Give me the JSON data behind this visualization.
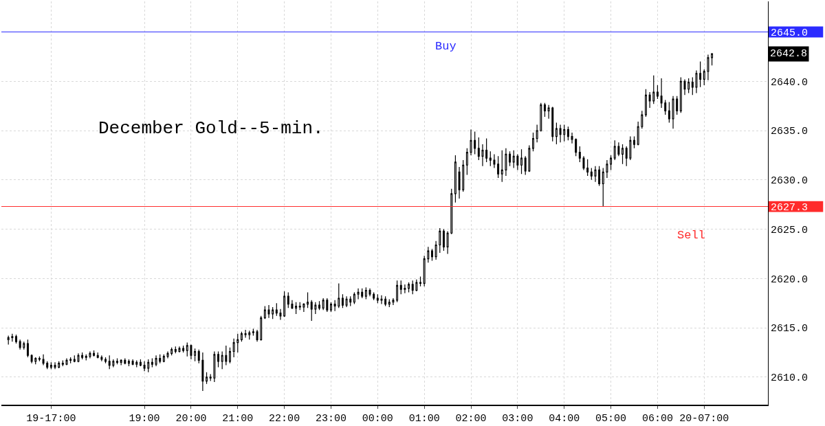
{
  "chart_data": {
    "type": "candlestick",
    "title": "December Gold--5-min.",
    "color": "#000000",
    "x": [
      "--11-19T16:05",
      "--11-19T16:10",
      "--11-19T16:15",
      "--11-19T16:20",
      "--11-19T16:25",
      "--11-19T16:30",
      "--11-19T16:35",
      "--11-19T16:40",
      "--11-19T16:45",
      "--11-19T16:50",
      "--11-19T16:55",
      "--11-19T17:00",
      "--11-19T17:05",
      "--11-19T17:10",
      "--11-19T17:15",
      "--11-19T17:20",
      "--11-19T17:25",
      "--11-19T17:30",
      "--11-19T17:35",
      "--11-19T17:40",
      "--11-19T17:45",
      "--11-19T17:50",
      "--11-19T17:55",
      "--11-19T18:00",
      "--11-19T18:05",
      "--11-19T18:10",
      "--11-19T18:15",
      "--11-19T18:20",
      "--11-19T18:25",
      "--11-19T18:30",
      "--11-19T18:35",
      "--11-19T18:40",
      "--11-19T18:45",
      "--11-19T18:50",
      "--11-19T18:55",
      "--11-19T19:00",
      "--11-19T19:05",
      "--11-19T19:10",
      "--11-19T19:15",
      "--11-19T19:20",
      "--11-19T19:25",
      "--11-19T19:30",
      "--11-19T19:35",
      "--11-19T19:40",
      "--11-19T19:45",
      "--11-19T19:50",
      "--11-19T19:55",
      "--11-19T20:00",
      "--11-19T20:05",
      "--11-19T20:10",
      "--11-19T20:15",
      "--11-19T20:20",
      "--11-19T20:25",
      "--11-19T20:30",
      "--11-19T20:35",
      "--11-19T20:40",
      "--11-19T20:45",
      "--11-19T20:50",
      "--11-19T20:55",
      "--11-19T21:00",
      "--11-19T21:05",
      "--11-19T21:10",
      "--11-19T21:15",
      "--11-19T21:20",
      "--11-19T21:25",
      "--11-19T21:30",
      "--11-19T21:35",
      "--11-19T21:40",
      "--11-19T21:45",
      "--11-19T21:50",
      "--11-19T21:55",
      "--11-19T22:00",
      "--11-19T22:05",
      "--11-19T22:10",
      "--11-19T22:15",
      "--11-19T22:20",
      "--11-19T22:25",
      "--11-19T22:30",
      "--11-19T22:35",
      "--11-19T22:40",
      "--11-19T22:45",
      "--11-19T22:50",
      "--11-19T22:55",
      "--11-19T23:00",
      "--11-19T23:05",
      "--11-19T23:10",
      "--11-19T23:15",
      "--11-19T23:20",
      "--11-19T23:25",
      "--11-19T23:30",
      "--11-19T23:35",
      "--11-19T23:40",
      "--11-19T23:45",
      "--11-19T23:50",
      "--11-19T23:55",
      "--11-20T00:00",
      "--11-20T00:05",
      "--11-20T00:10",
      "--11-20T00:15",
      "--11-20T00:20",
      "--11-20T00:25",
      "--11-20T00:30",
      "--11-20T00:35",
      "--11-20T00:40",
      "--11-20T00:45",
      "--11-20T00:50",
      "--11-20T00:55",
      "--11-20T01:00",
      "--11-20T01:05",
      "--11-20T01:10",
      "--11-20T01:15",
      "--11-20T01:20",
      "--11-20T01:25",
      "--11-20T01:30",
      "--11-20T01:35",
      "--11-20T01:40",
      "--11-20T01:45",
      "--11-20T01:50",
      "--11-20T01:55",
      "--11-20T02:00",
      "--11-20T02:05",
      "--11-20T02:10",
      "--11-20T02:15",
      "--11-20T02:20",
      "--11-20T02:25",
      "--11-20T02:30",
      "--11-20T02:35",
      "--11-20T02:40",
      "--11-20T02:45",
      "--11-20T02:50",
      "--11-20T02:55",
      "--11-20T03:00",
      "--11-20T03:05",
      "--11-20T03:10",
      "--11-20T03:15",
      "--11-20T03:20",
      "--11-20T03:25",
      "--11-20T03:30",
      "--11-20T03:35",
      "--11-20T03:40",
      "--11-20T03:45",
      "--11-20T03:50",
      "--11-20T03:55",
      "--11-20T04:00",
      "--11-20T04:05",
      "--11-20T04:10",
      "--11-20T04:15",
      "--11-20T04:20",
      "--11-20T04:25",
      "--11-20T04:30",
      "--11-20T04:35",
      "--11-20T04:40",
      "--11-20T04:45",
      "--11-20T04:50",
      "--11-20T04:55",
      "--11-20T05:00",
      "--11-20T05:05",
      "--11-20T05:10",
      "--11-20T05:15",
      "--11-20T05:20",
      "--11-20T05:25",
      "--11-20T05:30",
      "--11-20T05:35",
      "--11-20T05:40",
      "--11-20T05:45",
      "--11-20T05:50",
      "--11-20T05:55",
      "--11-20T06:00",
      "--11-20T06:05",
      "--11-20T06:10",
      "--11-20T06:15",
      "--11-20T06:20",
      "--11-20T06:25",
      "--11-20T06:30",
      "--11-20T06:35",
      "--11-20T06:40",
      "--11-20T06:45",
      "--11-20T06:50",
      "--11-20T06:55",
      "--11-20T07:00",
      "--11-20T07:05",
      "--11-20T07:10"
    ],
    "ohlc": [
      [
        2613.8,
        2614.2,
        2613.3,
        2614.0
      ],
      [
        2614.0,
        2614.4,
        2613.6,
        2614.1
      ],
      [
        2614.1,
        2614.3,
        2613.4,
        2613.6
      ],
      [
        2613.6,
        2613.8,
        2612.8,
        2613.0
      ],
      [
        2613.0,
        2613.6,
        2612.8,
        2613.4
      ],
      [
        2613.4,
        2613.8,
        2612.0,
        2612.2
      ],
      [
        2612.2,
        2612.3,
        2611.4,
        2611.6
      ],
      [
        2611.6,
        2612.0,
        2611.3,
        2611.9
      ],
      [
        2611.9,
        2612.1,
        2611.6,
        2611.8
      ],
      [
        2611.8,
        2612.3,
        2611.2,
        2611.4
      ],
      [
        2611.4,
        2611.6,
        2610.8,
        2611.0
      ],
      [
        2611.0,
        2611.5,
        2610.8,
        2611.2
      ],
      [
        2611.2,
        2611.5,
        2610.8,
        2611.0
      ],
      [
        2611.0,
        2611.6,
        2610.9,
        2611.4
      ],
      [
        2611.4,
        2611.7,
        2611.1,
        2611.3
      ],
      [
        2611.3,
        2611.9,
        2611.2,
        2611.7
      ],
      [
        2611.7,
        2612.0,
        2611.4,
        2611.8
      ],
      [
        2611.8,
        2612.2,
        2611.5,
        2611.6
      ],
      [
        2611.6,
        2612.4,
        2611.5,
        2612.2
      ],
      [
        2612.2,
        2612.5,
        2611.8,
        2612.0
      ],
      [
        2612.0,
        2612.3,
        2611.7,
        2612.1
      ],
      [
        2612.1,
        2612.6,
        2611.9,
        2612.4
      ],
      [
        2612.4,
        2612.7,
        2612.1,
        2612.2
      ],
      [
        2612.2,
        2612.5,
        2611.9,
        2612.0
      ],
      [
        2612.0,
        2612.2,
        2611.6,
        2611.8
      ],
      [
        2611.8,
        2612.0,
        2611.4,
        2611.6
      ],
      [
        2611.6,
        2612.2,
        2610.8,
        2611.2
      ],
      [
        2611.2,
        2611.8,
        2611.0,
        2611.6
      ],
      [
        2611.6,
        2611.9,
        2611.3,
        2611.5
      ],
      [
        2611.5,
        2611.8,
        2611.2,
        2611.7
      ],
      [
        2611.7,
        2611.9,
        2611.3,
        2611.4
      ],
      [
        2611.4,
        2611.8,
        2611.1,
        2611.6
      ],
      [
        2611.6,
        2611.8,
        2611.2,
        2611.3
      ],
      [
        2611.3,
        2611.7,
        2611.0,
        2611.5
      ],
      [
        2611.5,
        2611.8,
        2611.1,
        2611.2
      ],
      [
        2611.2,
        2611.6,
        2610.6,
        2610.9
      ],
      [
        2610.9,
        2611.8,
        2610.5,
        2611.5
      ],
      [
        2611.5,
        2611.9,
        2611.0,
        2611.3
      ],
      [
        2611.3,
        2612.2,
        2611.1,
        2611.9
      ],
      [
        2611.9,
        2612.3,
        2611.4,
        2611.6
      ],
      [
        2611.6,
        2612.3,
        2611.5,
        2612.1
      ],
      [
        2612.1,
        2612.6,
        2611.9,
        2612.4
      ],
      [
        2612.4,
        2613.0,
        2612.2,
        2612.8
      ],
      [
        2612.8,
        2613.1,
        2612.4,
        2612.6
      ],
      [
        2612.6,
        2613.1,
        2612.5,
        2612.9
      ],
      [
        2612.9,
        2613.2,
        2612.5,
        2612.7
      ],
      [
        2612.7,
        2613.5,
        2612.1,
        2613.2
      ],
      [
        2613.2,
        2613.3,
        2611.8,
        2612.2
      ],
      [
        2612.2,
        2612.9,
        2611.6,
        2612.6
      ],
      [
        2612.6,
        2612.8,
        2611.4,
        2611.7
      ],
      [
        2611.7,
        2612.5,
        2608.6,
        2609.6
      ],
      [
        2609.6,
        2610.5,
        2609.3,
        2610.0
      ],
      [
        2610.0,
        2610.3,
        2609.6,
        2609.9
      ],
      [
        2609.9,
        2612.6,
        2609.5,
        2612.3
      ],
      [
        2612.3,
        2612.6,
        2611.0,
        2611.6
      ],
      [
        2611.6,
        2612.6,
        2610.8,
        2612.2
      ],
      [
        2612.2,
        2613.2,
        2611.2,
        2611.6
      ],
      [
        2611.6,
        2613.0,
        2611.4,
        2612.6
      ],
      [
        2612.6,
        2613.9,
        2612.0,
        2613.5
      ],
      [
        2613.5,
        2614.4,
        2612.5,
        2613.8
      ],
      [
        2613.8,
        2614.6,
        2613.6,
        2614.4
      ],
      [
        2614.4,
        2614.8,
        2614.0,
        2614.3
      ],
      [
        2614.3,
        2614.7,
        2613.8,
        2614.5
      ],
      [
        2614.5,
        2614.9,
        2614.2,
        2614.6
      ],
      [
        2614.6,
        2614.8,
        2613.6,
        2613.8
      ],
      [
        2613.8,
        2616.2,
        2613.7,
        2616.0
      ],
      [
        2616.0,
        2617.2,
        2615.9,
        2616.8
      ],
      [
        2616.8,
        2617.3,
        2616.0,
        2616.4
      ],
      [
        2616.4,
        2617.1,
        2615.9,
        2616.8
      ],
      [
        2616.8,
        2617.5,
        2616.2,
        2616.5
      ],
      [
        2616.5,
        2616.9,
        2615.8,
        2616.2
      ],
      [
        2616.2,
        2618.7,
        2616.1,
        2618.2
      ],
      [
        2618.2,
        2618.6,
        2617.0,
        2617.4
      ],
      [
        2617.4,
        2617.8,
        2616.9,
        2617.0
      ],
      [
        2617.0,
        2617.6,
        2616.4,
        2617.2
      ],
      [
        2617.2,
        2617.6,
        2616.8,
        2617.1
      ],
      [
        2617.1,
        2617.5,
        2616.6,
        2617.4
      ],
      [
        2617.4,
        2618.6,
        2617.0,
        2617.6
      ],
      [
        2617.6,
        2617.8,
        2615.7,
        2616.9
      ],
      [
        2616.9,
        2617.6,
        2616.4,
        2617.3
      ],
      [
        2617.3,
        2617.7,
        2616.8,
        2617.0
      ],
      [
        2617.0,
        2618.0,
        2616.8,
        2617.8
      ],
      [
        2617.8,
        2618.0,
        2616.6,
        2616.8
      ],
      [
        2616.8,
        2617.6,
        2616.6,
        2617.4
      ],
      [
        2617.4,
        2617.8,
        2616.7,
        2617.2
      ],
      [
        2617.2,
        2619.5,
        2617.0,
        2618.0
      ],
      [
        2618.0,
        2618.4,
        2617.0,
        2617.3
      ],
      [
        2617.3,
        2618.2,
        2617.1,
        2617.9
      ],
      [
        2617.9,
        2618.2,
        2617.2,
        2617.6
      ],
      [
        2617.6,
        2618.6,
        2617.4,
        2618.4
      ],
      [
        2618.4,
        2619.0,
        2617.9,
        2618.6
      ],
      [
        2618.6,
        2619.0,
        2618.0,
        2618.2
      ],
      [
        2618.2,
        2619.1,
        2617.9,
        2618.8
      ],
      [
        2618.8,
        2619.0,
        2618.2,
        2618.4
      ],
      [
        2618.4,
        2618.6,
        2617.8,
        2618.0
      ],
      [
        2618.0,
        2618.4,
        2617.5,
        2617.8
      ],
      [
        2617.8,
        2618.3,
        2617.4,
        2617.9
      ],
      [
        2617.9,
        2618.2,
        2617.2,
        2617.4
      ],
      [
        2617.4,
        2617.9,
        2617.1,
        2617.6
      ],
      [
        2617.6,
        2618.0,
        2617.3,
        2617.8
      ],
      [
        2617.8,
        2619.8,
        2617.6,
        2619.3
      ],
      [
        2619.3,
        2619.8,
        2618.4,
        2618.9
      ],
      [
        2618.9,
        2619.4,
        2618.5,
        2619.0
      ],
      [
        2619.0,
        2619.6,
        2618.6,
        2619.4
      ],
      [
        2619.4,
        2619.8,
        2618.4,
        2618.8
      ],
      [
        2618.8,
        2619.9,
        2618.7,
        2619.6
      ],
      [
        2619.6,
        2620.2,
        2619.2,
        2619.5
      ],
      [
        2619.5,
        2622.3,
        2619.2,
        2622.0
      ],
      [
        2622.0,
        2623.2,
        2621.6,
        2622.8
      ],
      [
        2622.8,
        2623.0,
        2621.8,
        2622.2
      ],
      [
        2622.2,
        2623.8,
        2621.9,
        2623.4
      ],
      [
        2623.4,
        2625.1,
        2622.6,
        2624.8
      ],
      [
        2624.8,
        2625.0,
        2622.8,
        2623.2
      ],
      [
        2623.2,
        2624.8,
        2622.5,
        2624.6
      ],
      [
        2624.6,
        2629.1,
        2624.5,
        2628.6
      ],
      [
        2628.6,
        2632.5,
        2627.7,
        2631.8
      ],
      [
        2630.8,
        2631.3,
        2628.1,
        2629.0
      ],
      [
        2629.0,
        2632.0,
        2628.8,
        2631.5
      ],
      [
        2631.5,
        2633.2,
        2630.5,
        2632.8
      ],
      [
        2632.8,
        2635.1,
        2632.5,
        2634.0
      ],
      [
        2634.0,
        2634.9,
        2632.6,
        2633.2
      ],
      [
        2633.2,
        2634.3,
        2632.0,
        2632.4
      ],
      [
        2632.4,
        2633.6,
        2631.4,
        2633.0
      ],
      [
        2633.0,
        2634.2,
        2631.8,
        2632.2
      ],
      [
        2632.2,
        2632.9,
        2631.4,
        2632.0
      ],
      [
        2632.0,
        2632.6,
        2631.2,
        2631.6
      ],
      [
        2631.6,
        2632.4,
        2630.2,
        2630.6
      ],
      [
        2630.6,
        2633.0,
        2629.8,
        2631.0
      ],
      [
        2631.0,
        2633.2,
        2630.4,
        2632.6
      ],
      [
        2632.6,
        2632.9,
        2631.4,
        2631.8
      ],
      [
        2631.8,
        2633.0,
        2631.2,
        2632.4
      ],
      [
        2632.4,
        2632.6,
        2631.0,
        2631.5
      ],
      [
        2631.5,
        2633.1,
        2630.6,
        2632.2
      ],
      [
        2632.2,
        2632.4,
        2630.5,
        2630.9
      ],
      [
        2630.9,
        2633.5,
        2630.8,
        2633.2
      ],
      [
        2633.2,
        2634.8,
        2632.9,
        2634.2
      ],
      [
        2634.2,
        2635.6,
        2633.8,
        2635.0
      ],
      [
        2635.0,
        2637.8,
        2634.9,
        2637.6
      ],
      [
        2637.6,
        2637.8,
        2636.4,
        2637.0
      ],
      [
        2637.0,
        2637.6,
        2636.2,
        2637.3
      ],
      [
        2637.3,
        2637.4,
        2633.9,
        2634.4
      ],
      [
        2634.4,
        2635.8,
        2633.6,
        2635.2
      ],
      [
        2635.2,
        2635.6,
        2633.8,
        2634.6
      ],
      [
        2634.6,
        2635.6,
        2633.9,
        2635.1
      ],
      [
        2635.1,
        2635.4,
        2634.0,
        2634.4
      ],
      [
        2634.4,
        2634.8,
        2633.7,
        2634.1
      ],
      [
        2634.1,
        2634.2,
        2632.4,
        2632.8
      ],
      [
        2632.8,
        2633.4,
        2631.8,
        2632.2
      ],
      [
        2632.2,
        2632.4,
        2631.0,
        2631.2
      ],
      [
        2631.2,
        2632.1,
        2630.4,
        2630.8
      ],
      [
        2630.8,
        2631.2,
        2630.0,
        2630.4
      ],
      [
        2630.4,
        2631.4,
        2629.8,
        2631.0
      ],
      [
        2631.0,
        2631.4,
        2629.4,
        2629.6
      ],
      [
        2629.6,
        2631.2,
        2627.3,
        2630.8
      ],
      [
        2630.8,
        2632.0,
        2630.2,
        2631.6
      ],
      [
        2631.6,
        2632.5,
        2631.0,
        2632.2
      ],
      [
        2632.2,
        2634.0,
        2632.0,
        2633.4
      ],
      [
        2633.4,
        2633.8,
        2632.4,
        2632.6
      ],
      [
        2632.6,
        2633.6,
        2631.6,
        2633.2
      ],
      [
        2633.2,
        2633.4,
        2631.4,
        2632.2
      ],
      [
        2632.2,
        2634.4,
        2632.0,
        2634.0
      ],
      [
        2634.0,
        2634.4,
        2633.2,
        2633.6
      ],
      [
        2633.6,
        2635.9,
        2633.5,
        2635.4
      ],
      [
        2635.4,
        2637.0,
        2635.2,
        2636.6
      ],
      [
        2636.6,
        2639.2,
        2636.4,
        2638.6
      ],
      [
        2638.6,
        2638.9,
        2637.3,
        2638.0
      ],
      [
        2638.0,
        2640.6,
        2637.7,
        2638.9
      ],
      [
        2638.9,
        2639.6,
        2638.2,
        2638.5
      ],
      [
        2638.5,
        2640.3,
        2637.3,
        2637.8
      ],
      [
        2637.8,
        2638.1,
        2636.6,
        2637.0
      ],
      [
        2637.0,
        2637.9,
        2635.8,
        2636.2
      ],
      [
        2636.2,
        2638.5,
        2635.2,
        2638.2
      ],
      [
        2638.2,
        2638.5,
        2636.6,
        2637.0
      ],
      [
        2637.0,
        2640.4,
        2636.8,
        2640.0
      ],
      [
        2640.0,
        2640.2,
        2638.6,
        2639.2
      ],
      [
        2639.2,
        2640.3,
        2638.8,
        2639.9
      ],
      [
        2639.9,
        2640.4,
        2638.6,
        2639.4
      ],
      [
        2639.4,
        2641.1,
        2638.8,
        2640.8
      ],
      [
        2640.8,
        2642.0,
        2639.4,
        2640.2
      ],
      [
        2640.2,
        2641.2,
        2639.6,
        2641.0
      ],
      [
        2641.0,
        2642.7,
        2640.1,
        2642.4
      ],
      [
        2642.4,
        2642.8,
        2641.6,
        2642.8
      ]
    ],
    "xlim": [
      "--11-19T15:56",
      "--11-20T08:22"
    ],
    "xticks": [
      {
        "value": "--11-19T17:00",
        "label": "19-17:00"
      },
      {
        "value": "--11-19T19:00",
        "label": "19:00"
      },
      {
        "value": "--11-19T20:00",
        "label": "20:00"
      },
      {
        "value": "--11-19T21:00",
        "label": "21:00"
      },
      {
        "value": "--11-19T22:00",
        "label": "22:00"
      },
      {
        "value": "--11-19T23:00",
        "label": "23:00"
      },
      {
        "value": "--11-20T00:00",
        "label": "00:00"
      },
      {
        "value": "--11-20T01:00",
        "label": "01:00"
      },
      {
        "value": "--11-20T02:00",
        "label": "02:00"
      },
      {
        "value": "--11-20T03:00",
        "label": "03:00"
      },
      {
        "value": "--11-20T04:00",
        "label": "04:00"
      },
      {
        "value": "--11-20T05:00",
        "label": "05:00"
      },
      {
        "value": "--11-20T06:00",
        "label": "06:00"
      },
      {
        "value": "--11-20T07:00",
        "label": "20-07:00"
      }
    ],
    "ylim": [
      2607.2,
      2648.1
    ],
    "yticks": [
      {
        "value": 2645,
        "label": "2645.0"
      },
      {
        "value": 2627.3,
        "label": "2627.3"
      },
      {
        "value": 2610,
        "label": "2610.0"
      },
      {
        "value": 2615,
        "label": "2615.0"
      },
      {
        "value": 2620,
        "label": "2620.0"
      },
      {
        "value": 2625,
        "label": "2625.0"
      },
      {
        "value": 2630,
        "label": "2630.0"
      },
      {
        "value": 2635,
        "label": "2635.0"
      },
      {
        "value": 2640,
        "label": "2640.0"
      }
    ],
    "grid": true,
    "ref_lines": [
      {
        "axis": "y",
        "value": 2645.0,
        "label": "Buy",
        "color": "#2b2bff"
      },
      {
        "axis": "y",
        "value": 2627.3,
        "label": "Sell",
        "color": "#ff2b2b"
      }
    ],
    "annotations": [
      "2642.8"
    ]
  }
}
